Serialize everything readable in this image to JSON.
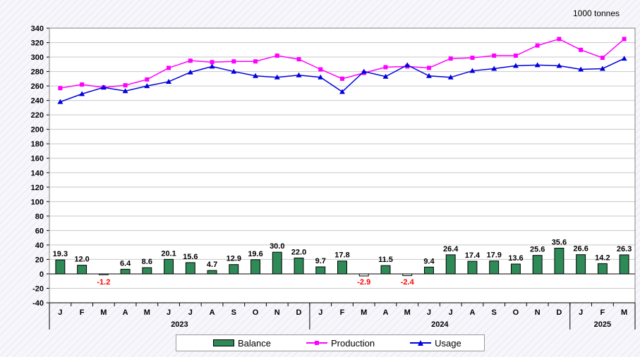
{
  "unit_label": "1000 tonnes",
  "chart_data": {
    "type": "bar+line",
    "categories": [
      "J",
      "F",
      "M",
      "A",
      "M",
      "J",
      "J",
      "A",
      "S",
      "O",
      "N",
      "D",
      "J",
      "F",
      "M",
      "A",
      "M",
      "J",
      "J",
      "A",
      "S",
      "O",
      "N",
      "D",
      "J",
      "F",
      "M"
    ],
    "years": [
      {
        "label": "2023",
        "start": 0,
        "count": 12
      },
      {
        "label": "2024",
        "start": 12,
        "count": 12
      },
      {
        "label": "2025",
        "start": 24,
        "count": 3
      }
    ],
    "ylim": [
      -40,
      340
    ],
    "ytick_step": 20,
    "grid": true,
    "legend_position": "bottom",
    "series": [
      {
        "name": "Balance",
        "kind": "bar",
        "color": "#2e8b57",
        "values": [
          19.3,
          12.0,
          -1.2,
          6.4,
          8.6,
          20.1,
          15.6,
          4.7,
          12.9,
          19.6,
          30.0,
          22.0,
          9.7,
          17.8,
          -2.9,
          11.5,
          -2.4,
          9.4,
          26.4,
          17.4,
          17.9,
          13.6,
          25.6,
          35.6,
          26.6,
          14.2,
          26.3
        ],
        "labels": [
          "19.3",
          "12.0",
          "-1.2",
          "6.4",
          "8.6",
          "20.1",
          "15.6",
          "4.7",
          "12.9",
          "19.6",
          "30.0",
          "22.0",
          "9.7",
          "17.8",
          "-2.9",
          "11.5",
          "-2.4",
          "9.4",
          "26.4",
          "17.4",
          "17.9",
          "13.6",
          "25.6",
          "35.6",
          "26.6",
          "14.2",
          "26.3"
        ]
      },
      {
        "name": "Production",
        "kind": "line",
        "color": "#ff00ff",
        "marker": "square",
        "values": [
          257,
          262,
          258,
          261,
          269,
          285,
          295,
          293,
          294,
          294,
          302,
          297,
          283,
          270,
          278,
          286,
          287,
          285,
          298,
          299,
          302,
          302,
          316,
          325,
          310,
          299,
          325
        ]
      },
      {
        "name": "Usage",
        "kind": "line",
        "color": "#0000dd",
        "marker": "triangle",
        "values": [
          238,
          249,
          258,
          253,
          260,
          266,
          279,
          287,
          280,
          274,
          272,
          275,
          272,
          252,
          280,
          273,
          289,
          274,
          272,
          281,
          284,
          288,
          289,
          288,
          283,
          284,
          298
        ]
      }
    ],
    "negative_label_color": "#ff0000"
  }
}
